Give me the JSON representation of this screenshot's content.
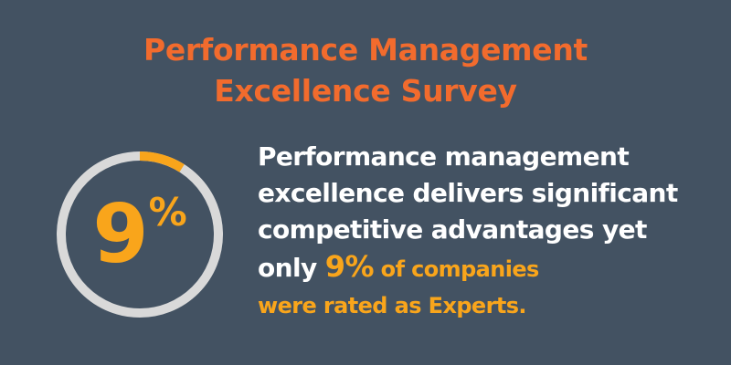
{
  "title": {
    "line1": "Performance Management",
    "line2": "Excellence Survey"
  },
  "stat": {
    "number": "9",
    "unit": "%",
    "fraction": 0.09
  },
  "body": {
    "line1": "Performance management",
    "line2": "excellence delivers significant",
    "line3": "competitive advantages yet",
    "line4_prefix": "only ",
    "line4_highlight": "9%",
    "line4_suffix": " of companies",
    "line5": "were rated as Experts."
  },
  "colors": {
    "background": "#435262",
    "title": "#f26b2d",
    "accent": "#f9a51b",
    "ring_track": "#d9d9d9",
    "text": "#ffffff"
  }
}
